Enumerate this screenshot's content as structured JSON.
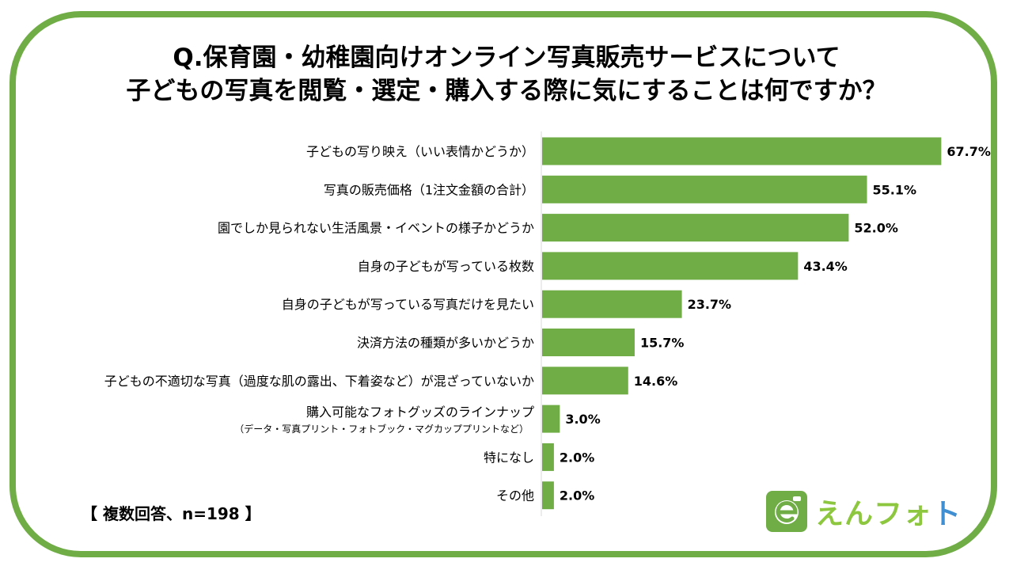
{
  "title": {
    "line1": "Q.保育園・幼稚園向けオンライン写真販売サービスについて",
    "line2": "子どもの写真を閲覧・選定・購入する際に気にすることは何ですか？"
  },
  "note": "【 複数回答、n=198 】",
  "logo": {
    "text_main": "えんフォ",
    "text_accent": "ト"
  },
  "colors": {
    "frame": "#70ad47",
    "bar": "#70ad47"
  },
  "chart_data": {
    "type": "bar",
    "orientation": "horizontal",
    "categories": [
      [
        "子どもの写り映え（いい表情かどうか）"
      ],
      [
        "写真の販売価格（1注文金額の合計）"
      ],
      [
        "園でしか見られない生活風景・イベントの様子かどうか"
      ],
      [
        "自身の子どもが写っている枚数"
      ],
      [
        "自身の子どもが写っている写真だけを見たい"
      ],
      [
        "決済方法の種類が多いかどうか"
      ],
      [
        "子どもの不適切な写真（過度な肌の露出、下着姿など）が混ざっていないか"
      ],
      [
        "購入可能なフォトグッズのラインナップ",
        "（データ・写真プリント・フォトブック・マグカッププリントなど）"
      ],
      [
        "特になし"
      ],
      [
        "その他"
      ]
    ],
    "values": [
      67.7,
      55.1,
      52.0,
      43.4,
      23.7,
      15.7,
      14.6,
      3.0,
      2.0,
      2.0
    ],
    "value_labels": [
      "67.7%",
      "55.1%",
      "52.0%",
      "43.4%",
      "23.7%",
      "15.7%",
      "14.6%",
      "3.0%",
      "2.0%",
      "2.0%"
    ],
    "xlim": [
      0,
      100
    ],
    "grid": false,
    "legend": "none"
  }
}
